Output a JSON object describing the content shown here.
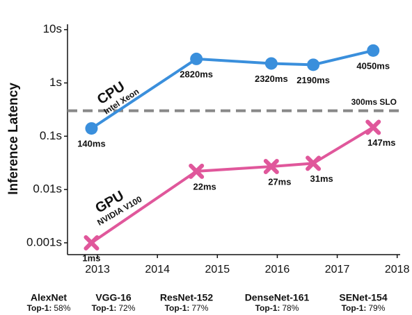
{
  "chart_data": {
    "type": "line",
    "ylabel": "Inference Latency",
    "log_y": true,
    "x": [
      2012.9,
      2014.65,
      2015.9,
      2016.6,
      2017.6
    ],
    "xlim": [
      2012.5,
      2018.05
    ],
    "xticks": [
      2013,
      2014,
      2015,
      2016,
      2017,
      2018
    ],
    "ylim": [
      0.0006,
      12.6
    ],
    "yticks": [
      {
        "value": 0.001,
        "label": "0.001s"
      },
      {
        "value": 0.01,
        "label": "0.01s"
      },
      {
        "value": 0.1,
        "label": "0.1s"
      },
      {
        "value": 1,
        "label": "1s"
      },
      {
        "value": 10,
        "label": "10s"
      }
    ],
    "slo": {
      "value": 0.3,
      "label": "300ms SLO",
      "color": "#888888"
    },
    "series": [
      {
        "name": "CPU",
        "device": "Intel Xeon",
        "color": "#3a8fdc",
        "marker": "circle",
        "values": [
          0.14,
          2.82,
          2.32,
          2.19,
          4.05
        ],
        "value_labels": [
          "140ms",
          "2820ms",
          "2320ms",
          "2190ms",
          "4050ms"
        ]
      },
      {
        "name": "GPU",
        "device": "NVIDIA V100",
        "color": "#e0579b",
        "marker": "x",
        "values": [
          0.001,
          0.022,
          0.027,
          0.031,
          0.147
        ],
        "value_labels": [
          "1ms",
          "22ms",
          "27ms",
          "31ms",
          "147ms"
        ]
      }
    ],
    "accuracy_label": "Top-1:",
    "models": [
      {
        "name": "AlexNet",
        "top1": "58%"
      },
      {
        "name": "VGG-16",
        "top1": "72%"
      },
      {
        "name": "ResNet-152",
        "top1": "77%"
      },
      {
        "name": "DenseNet-161",
        "top1": "78%"
      },
      {
        "name": "SENet-154",
        "top1": "79%"
      }
    ]
  }
}
